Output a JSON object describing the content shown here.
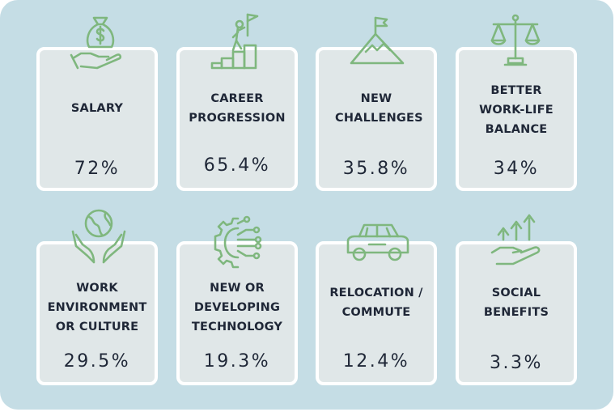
{
  "chart_data": {
    "type": "table",
    "items": [
      {
        "label": "SALARY",
        "value": "72%",
        "icon": "money-bag-hand-icon"
      },
      {
        "label": "CAREER PROGRESSION",
        "value": "65.4%",
        "icon": "career-ladder-flag-icon"
      },
      {
        "label": "NEW CHALLENGES",
        "value": "35.8%",
        "icon": "mountain-flag-icon"
      },
      {
        "label": "BETTER WORK-LIFE BALANCE",
        "value": "34%",
        "icon": "scales-icon"
      },
      {
        "label": "WORK ENVIRONMENT OR CULTURE",
        "value": "29.5%",
        "icon": "globe-hands-icon"
      },
      {
        "label": "NEW OR DEVELOPING TECHNOLOGY",
        "value": "19.3%",
        "icon": "tech-circuit-icon"
      },
      {
        "label": "RELOCATION / COMMUTE",
        "value": "12.4%",
        "icon": "car-icon"
      },
      {
        "label": "SOCIAL BENEFITS",
        "value": "3.3%",
        "icon": "hand-growth-arrows-icon"
      }
    ]
  },
  "colors": {
    "panel_background": "#c5dde5",
    "card_background": "#e0e7e8",
    "card_border": "#ffffff",
    "icon_green": "#7fb77e",
    "text": "#1f2737"
  }
}
